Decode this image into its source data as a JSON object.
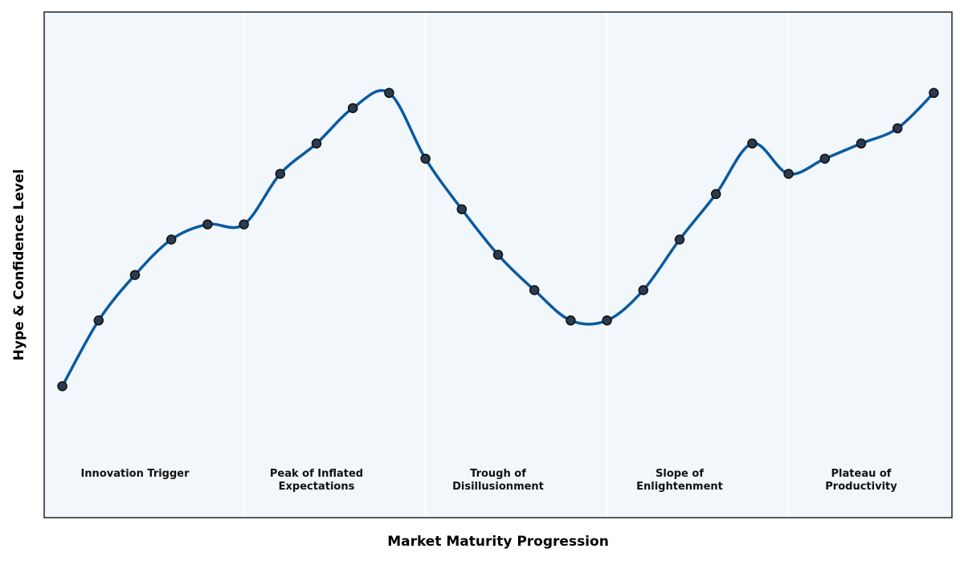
{
  "chart_data": {
    "type": "line",
    "x_label": "Market Maturity Progression",
    "y_label": "Hype & Confidence Level",
    "x": [
      0,
      1,
      2,
      3,
      4,
      5,
      6,
      7,
      8,
      9,
      10,
      11,
      12,
      13,
      14,
      15,
      16,
      17,
      18,
      19,
      20,
      21,
      22,
      23,
      24
    ],
    "series": [
      {
        "color": "#0a5aa0",
        "marker_color": "#2b3a4f",
        "values": [
          26,
          39,
          48,
          55,
          58,
          58,
          68,
          74,
          81,
          84,
          71,
          61,
          52,
          45,
          39,
          39,
          45,
          55,
          64,
          74,
          68,
          71,
          74,
          77,
          84
        ]
      }
    ],
    "phases": [
      [
        "Innovation Trigger"
      ],
      [
        "Peak of Inflated",
        "Expectations"
      ],
      [
        "Trough of",
        "Disillusionment"
      ],
      [
        "Slope of",
        "Enlightenment"
      ],
      [
        "Plateau of",
        "Productivity"
      ]
    ],
    "xlim": [
      -0.5,
      24.5
    ],
    "ylim": [
      0,
      100
    ],
    "smooth": true
  }
}
